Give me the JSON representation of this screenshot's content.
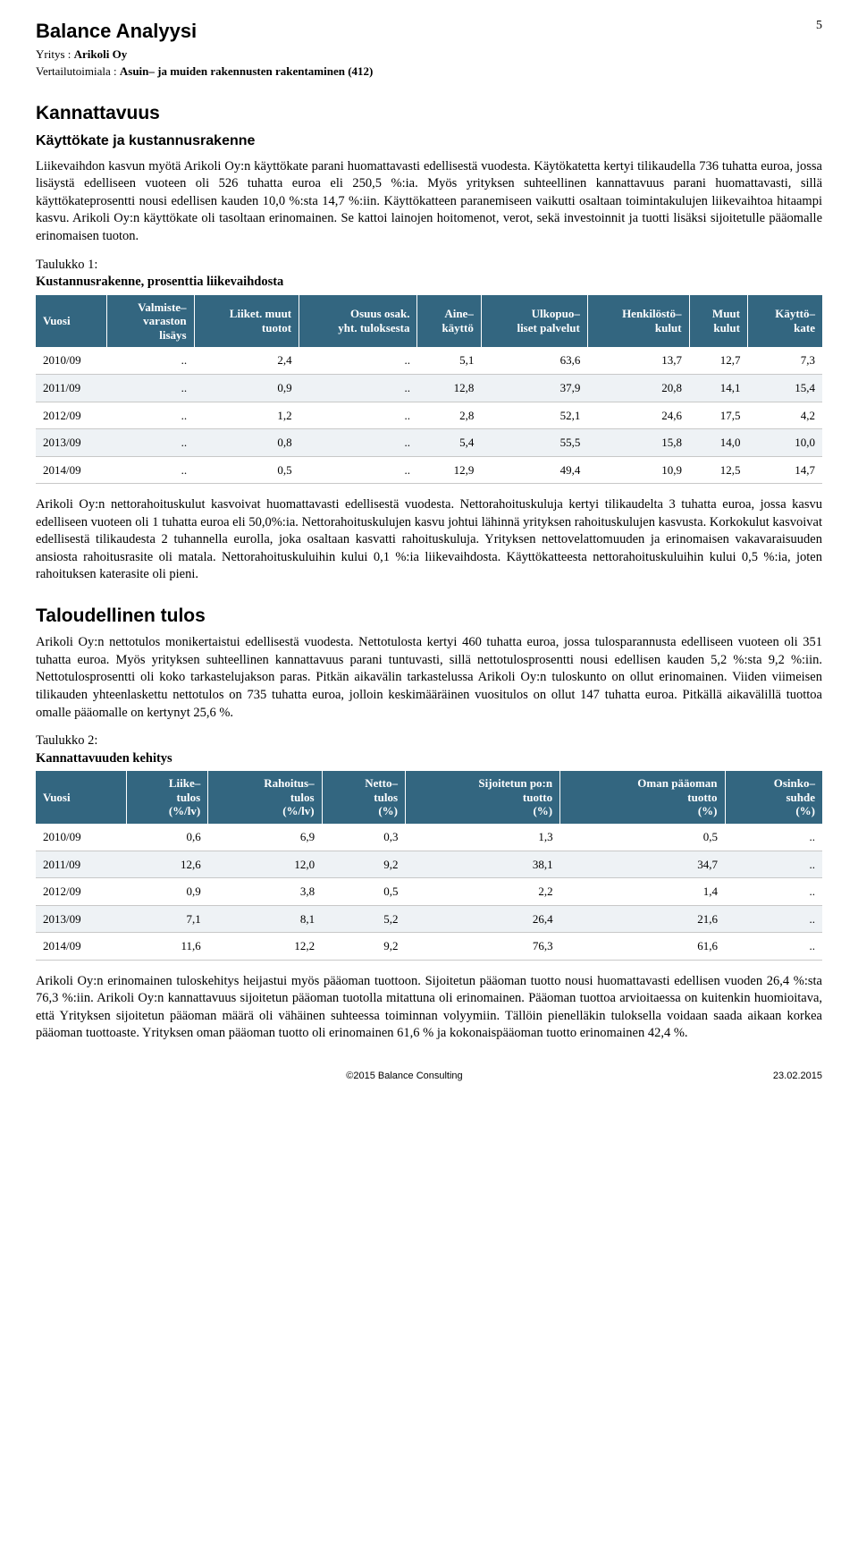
{
  "header": {
    "title": "Balance Analyysi",
    "page_number": "5",
    "company_label": "Yritys : ",
    "company_value": "Arikoli Oy",
    "industry_label": "Vertailutoimiala : ",
    "industry_value": "Asuin– ja muiden rakennusten rakentaminen (412)"
  },
  "section1": {
    "heading": "Kannattavuus",
    "subheading": "Käyttökate ja kustannusrakenne",
    "paragraph": "Liikevaihdon kasvun myötä Arikoli Oy:n käyttökate parani huomattavasti edellisestä vuodesta. Käytökatetta kertyi tilikaudella 736 tuhatta euroa, jossa lisäystä edelliseen vuoteen oli 526 tuhatta euroa eli 250,5 %:ia. Myös yrityksen suhteellinen kannattavuus parani huomattavasti, sillä käyttökateprosentti nousi edellisen kauden 10,0 %:sta 14,7 %:iin. Käyttökatteen paranemiseen vaikutti osaltaan toimintakulujen liikevaihtoa hitaampi kasvu. Arikoli Oy:n käyttökate oli tasoltaan erinomainen. Se kattoi lainojen hoitomenot, verot, sekä investoinnit ja tuotti lisäksi sijoitetulle pääomalle erinomaisen tuoton."
  },
  "table1": {
    "caption_line1": "Taulukko 1:",
    "caption_line2": "Kustannusrakenne, prosenttia liikevaihdosta",
    "header_bg": "#336680",
    "header_fg": "#ffffff",
    "row_alt_bg": "#eef2f5",
    "border_color": "#c8c8c8",
    "columns": [
      "Vuosi",
      "Valmiste–\nvaraston\nlisäys",
      "Liiket. muut\ntuotot",
      "Osuus osak.\nyht. tuloksesta",
      "Aine–\nkäyttö",
      "Ulkopuo–\nliset palvelut",
      "Henkilöstö–\nkulut",
      "Muut\nkulut",
      "Käyttö–\nkate"
    ],
    "rows": [
      [
        "2010/09",
        "..",
        "2,4",
        "..",
        "5,1",
        "63,6",
        "13,7",
        "12,7",
        "7,3"
      ],
      [
        "2011/09",
        "..",
        "0,9",
        "..",
        "12,8",
        "37,9",
        "20,8",
        "14,1",
        "15,4"
      ],
      [
        "2012/09",
        "..",
        "1,2",
        "..",
        "2,8",
        "52,1",
        "24,6",
        "17,5",
        "4,2"
      ],
      [
        "2013/09",
        "..",
        "0,8",
        "..",
        "5,4",
        "55,5",
        "15,8",
        "14,0",
        "10,0"
      ],
      [
        "2014/09",
        "..",
        "0,5",
        "..",
        "12,9",
        "49,4",
        "10,9",
        "12,5",
        "14,7"
      ]
    ]
  },
  "section2": {
    "paragraph": "Arikoli Oy:n nettorahoituskulut kasvoivat huomattavasti edellisestä vuodesta. Nettorahoituskuluja kertyi tilikaudelta 3 tuhatta euroa, jossa kasvu edelliseen vuoteen oli 1 tuhatta euroa eli 50,0%:ia. Nettorahoituskulujen kasvu johtui lähinnä yrityksen rahoituskulujen kasvusta. Korkokulut kasvoivat edellisestä tilikaudesta 2 tuhannella eurolla, joka osaltaan kasvatti rahoituskuluja. Yrityksen nettovelattomuuden ja erinomaisen vakavaraisuuden ansiosta rahoitusrasite oli matala. Nettorahoituskuluihin kului 0,1 %:ia liikevaihdosta. Käyttökatteesta nettorahoituskuluihin kului 0,5 %:ia, joten rahoituksen katerasite oli pieni.",
    "heading": "Taloudellinen tulos",
    "paragraph2": "Arikoli Oy:n nettotulos monikertaistui edellisestä vuodesta. Nettotulosta kertyi 460 tuhatta euroa, jossa tulosparannusta edelliseen vuoteen oli 351 tuhatta euroa. Myös yrityksen suhteellinen kannattavuus parani tuntuvasti, sillä nettotulosprosentti nousi edellisen kauden 5,2 %:sta 9,2 %:iin. Nettotulosprosentti oli koko tarkastelujakson paras. Pitkän aikavälin tarkastelussa Arikoli Oy:n tuloskunto on ollut erinomainen. Viiden viimeisen tilikauden yhteenlaskettu nettotulos on 735 tuhatta euroa, jolloin keskimääräinen vuositulos on ollut 147 tuhatta euroa. Pitkällä aikavälillä tuottoa omalle pääomalle on kertynyt 25,6 %."
  },
  "table2": {
    "caption_line1": "Taulukko 2:",
    "caption_line2": "Kannattavuuden kehitys",
    "columns": [
      "Vuosi",
      "Liike–\ntulos\n(%/lv)",
      "Rahoitus–\ntulos\n(%/lv)",
      "Netto–\ntulos\n(%)",
      "Sijoitetun po:n\ntuotto\n(%)",
      "Oman pääoman\ntuotto\n(%)",
      "Osinko–\nsuhde\n(%)"
    ],
    "rows": [
      [
        "2010/09",
        "0,6",
        "6,9",
        "0,3",
        "1,3",
        "0,5",
        ".."
      ],
      [
        "2011/09",
        "12,6",
        "12,0",
        "9,2",
        "38,1",
        "34,7",
        ".."
      ],
      [
        "2012/09",
        "0,9",
        "3,8",
        "0,5",
        "2,2",
        "1,4",
        ".."
      ],
      [
        "2013/09",
        "7,1",
        "8,1",
        "5,2",
        "26,4",
        "21,6",
        ".."
      ],
      [
        "2014/09",
        "11,6",
        "12,2",
        "9,2",
        "76,3",
        "61,6",
        ".."
      ]
    ]
  },
  "section3": {
    "paragraph": "Arikoli Oy:n erinomainen tuloskehitys heijastui myös pääoman tuottoon. Sijoitetun pääoman tuotto nousi huomattavasti edellisen vuoden 26,4 %:sta 76,3 %:iin. Arikoli Oy:n kannattavuus sijoitetun pääoman tuotolla mitattuna oli erinomainen. Pääoman tuottoa arvioitaessa on kuitenkin huomioitava, että Yrityksen sijoitetun pääoman määrä oli vähäinen suhteessa toiminnan volyymiin. Tällöin pienelläkin tuloksella voidaan saada aikaan korkea pääoman tuottoaste. Yrityksen oman pääoman tuotto oli erinomainen 61,6 % ja kokonaispääoman tuotto erinomainen 42,4 %."
  },
  "footer": {
    "copyright": "©2015 Balance Consulting",
    "date": "23.02.2015"
  }
}
